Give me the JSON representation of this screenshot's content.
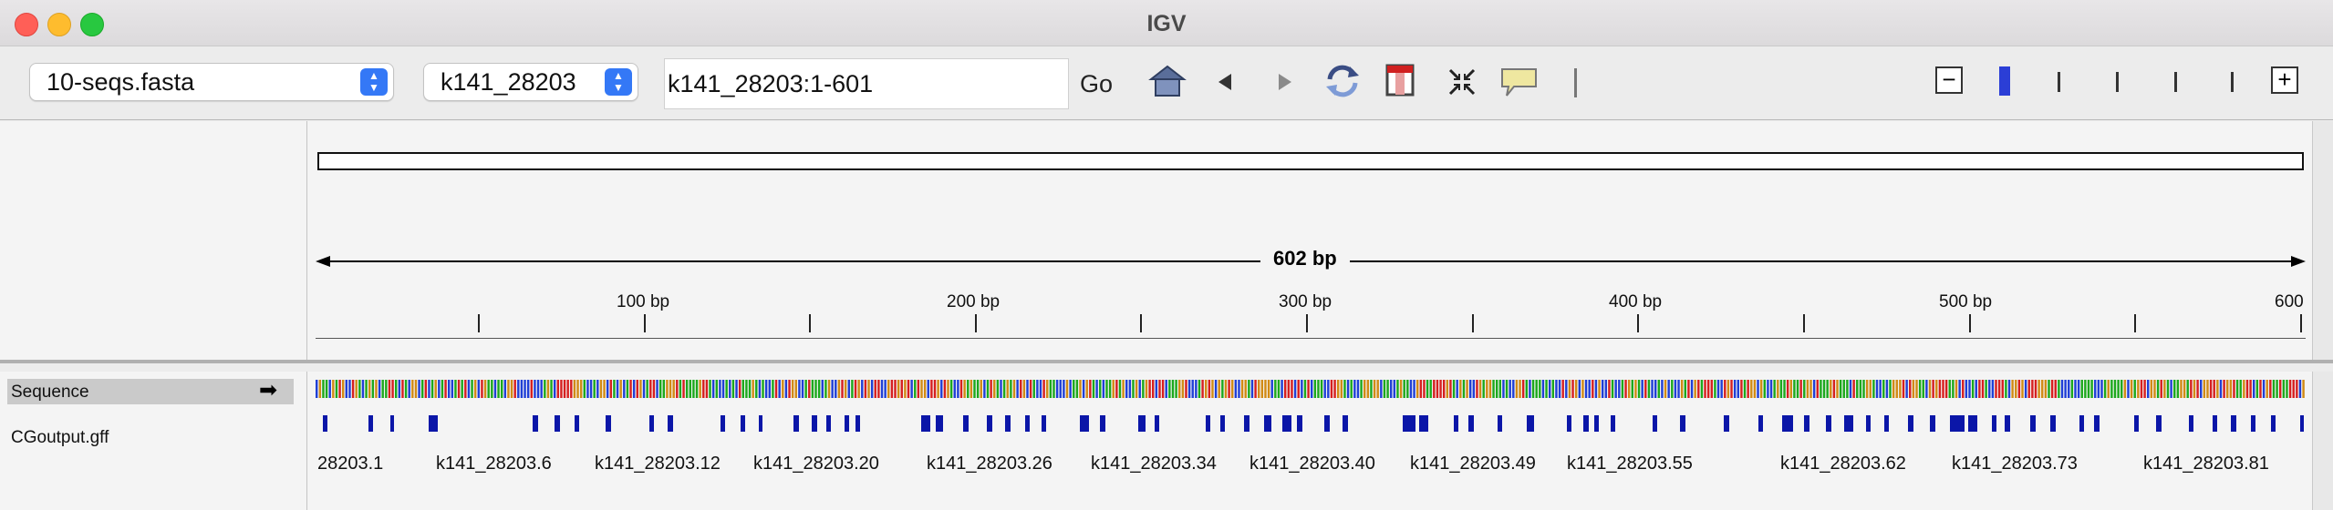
{
  "window": {
    "title": "IGV"
  },
  "toolbar": {
    "genome_select": "10-seqs.fasta",
    "chrom_select": "k141_28203",
    "locus_value": "k141_28203:1-601",
    "go_label": "Go",
    "icons": [
      "home-icon",
      "back-icon",
      "forward-icon",
      "refresh-icon",
      "region-of-interest-icon",
      "resize-to-window-icon",
      "popup-text-icon"
    ]
  },
  "ruler": {
    "span_label": "602 bp",
    "ticks": [
      "100 bp",
      "200 bp",
      "300 bp",
      "400 bp",
      "500 bp",
      "600"
    ]
  },
  "tracks": {
    "sequence_label": "Sequence",
    "gff_label": "CGoutput.gff",
    "feature_labels": [
      "28203.1",
      "k141_28203.6",
      "k141_28203.12",
      "k141_28203.20",
      "k141_28203.26",
      "k141_28203.34",
      "k141_28203.40",
      "k141_28203.49",
      "k141_28203.55",
      "k141_28203.62",
      "k141_28203.73",
      "k141_28203.81"
    ]
  },
  "colors": {
    "feature": "#0b16a8",
    "zoom_current": "#2b3ed6",
    "base_A": "#1ca81c",
    "base_C": "#1f3fd6",
    "base_G": "#d18a14",
    "base_T": "#d61f1f"
  }
}
